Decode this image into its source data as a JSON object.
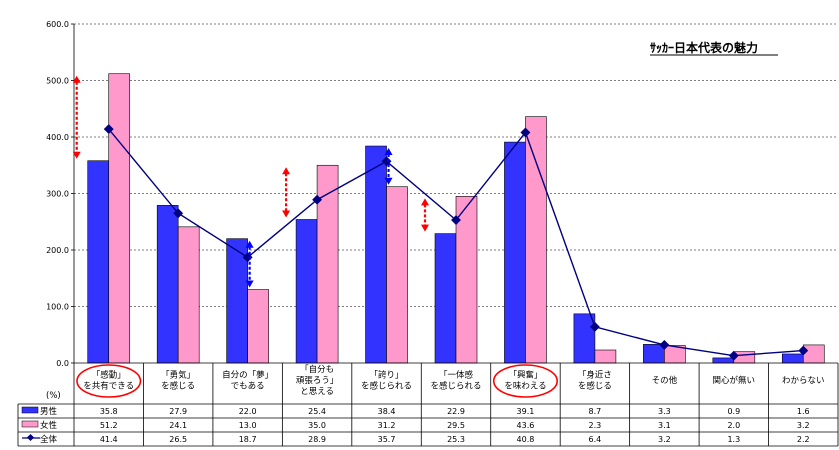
{
  "chart_data": {
    "type": "bar",
    "title": "ｻｯｶｰ日本代表の魅力",
    "ylabel": "(%)",
    "ylim": [
      0,
      600
    ],
    "yticks": [
      "0.0",
      "100.0",
      "200.0",
      "300.0",
      "400.0",
      "500.0",
      "600.0"
    ],
    "ytick_values": [
      0,
      100,
      200,
      300,
      400,
      500,
      600
    ],
    "categories": [
      [
        "「感動」",
        "を共有できる"
      ],
      [
        "「勇気」",
        "を感じる"
      ],
      [
        "自分の「夢」",
        "でもある"
      ],
      [
        "「自分も",
        "頑張ろう」",
        "と思える"
      ],
      [
        "「誇り」",
        "を感じられる"
      ],
      [
        "「一体感",
        "を感じられる"
      ],
      [
        "「興奮」",
        "を味わえる"
      ],
      [
        "「身近さ",
        "を感じる"
      ],
      [
        "その他"
      ],
      [
        "関心が無い"
      ],
      [
        "わからない"
      ]
    ],
    "series": [
      {
        "name": "男性",
        "kind": "bar",
        "color": "#3333ff",
        "values": [
          35.8,
          27.9,
          22.0,
          25.4,
          38.4,
          22.9,
          39.1,
          8.7,
          3.3,
          0.9,
          1.6
        ],
        "labels": [
          "35.8",
          "27.9",
          "22.0",
          "25.4",
          "38.4",
          "22.9",
          "39.1",
          "8.7",
          "3.3",
          "0.9",
          "1.6"
        ]
      },
      {
        "name": "女性",
        "kind": "bar",
        "color": "#ff99cc",
        "values": [
          51.2,
          24.1,
          13.0,
          35.0,
          31.2,
          29.5,
          43.6,
          2.3,
          3.1,
          2.0,
          3.2
        ],
        "labels": [
          "51.2",
          "24.1",
          "13.0",
          "35.0",
          "31.2",
          "29.5",
          "43.6",
          "2.3",
          "3.1",
          "2.0",
          "3.2"
        ]
      },
      {
        "name": "全体",
        "kind": "line",
        "color": "#000080",
        "values": [
          41.4,
          26.5,
          18.7,
          28.9,
          35.7,
          25.3,
          40.8,
          6.4,
          3.2,
          1.3,
          2.2
        ],
        "labels": [
          "41.4",
          "26.5",
          "18.7",
          "28.9",
          "35.7",
          "25.3",
          "40.8",
          "6.4",
          "3.2",
          "1.3",
          "2.2"
        ]
      }
    ],
    "circled_categories": [
      0,
      6
    ],
    "arrows": [
      {
        "category": 0,
        "from": 35.8,
        "to": 51.2,
        "color": "#ff0000"
      },
      {
        "category": 2,
        "from": 13.0,
        "to": 22.0,
        "color": "#0000ff"
      },
      {
        "category": 3,
        "from": 25.4,
        "to": 35.0,
        "color": "#ff0000"
      },
      {
        "category": 4,
        "from": 31.2,
        "to": 38.4,
        "color": "#0000ff"
      },
      {
        "category": 5,
        "from": 22.9,
        "to": 29.5,
        "color": "#ff0000"
      }
    ],
    "grid": true,
    "legend": "data-table"
  }
}
